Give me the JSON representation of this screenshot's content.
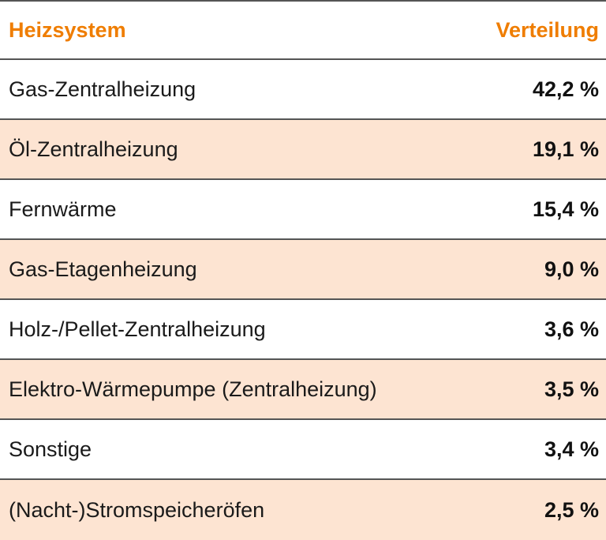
{
  "header": {
    "col1": "Heizsystem",
    "col2": "Verteilung"
  },
  "rows": [
    {
      "label": "Gas-Zentralheizung",
      "value": "42,2 %"
    },
    {
      "label": "Öl-Zentralheizung",
      "value": "19,1 %"
    },
    {
      "label": "Fernwärme",
      "value": "15,4 %"
    },
    {
      "label": "Gas-Etagenheizung",
      "value": "9,0 %"
    },
    {
      "label": "Holz-/Pellet-Zentralheizung",
      "value": "3,6 %"
    },
    {
      "label": "Elektro-Wärmepumpe (Zentralheizung)",
      "value": "3,5 %"
    },
    {
      "label": "Sonstige",
      "value": "3,4 %"
    },
    {
      "label": "(Nacht-)Stromspeicheröfen",
      "value": "2,5 %"
    }
  ],
  "colors": {
    "header_text": "#ef7d00",
    "row_shade": "#fde4d2",
    "divider": "#555555"
  }
}
